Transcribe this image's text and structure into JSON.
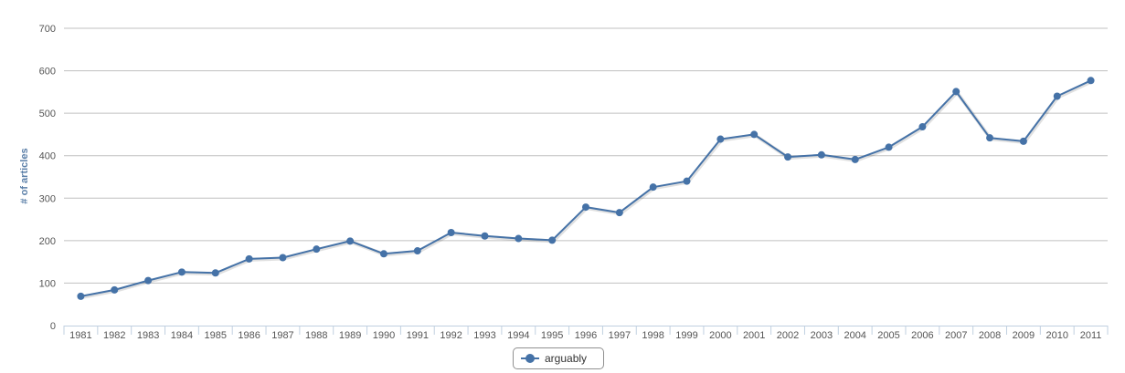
{
  "chart_data": {
    "type": "line",
    "x": [
      "1981",
      "1982",
      "1983",
      "1984",
      "1985",
      "1986",
      "1987",
      "1988",
      "1989",
      "1990",
      "1991",
      "1992",
      "1993",
      "1994",
      "1995",
      "1996",
      "1997",
      "1998",
      "1999",
      "2000",
      "2001",
      "2002",
      "2003",
      "2004",
      "2005",
      "2006",
      "2007",
      "2008",
      "2009",
      "2010",
      "2011"
    ],
    "series": [
      {
        "name": "arguably",
        "color": "#4572a7",
        "values": [
          69,
          84,
          106,
          126,
          124,
          157,
          160,
          180,
          199,
          169,
          176,
          219,
          211,
          205,
          201,
          279,
          266,
          326,
          340,
          439,
          450,
          397,
          402,
          391,
          420,
          468,
          551,
          442,
          434,
          540,
          577
        ]
      }
    ],
    "ylabel": "# of articles",
    "xlabel": "",
    "ylim": [
      0,
      700
    ],
    "yticks": [
      0,
      100,
      200,
      300,
      400,
      500,
      600,
      700
    ],
    "grid": true,
    "legend": "bottom-center"
  }
}
